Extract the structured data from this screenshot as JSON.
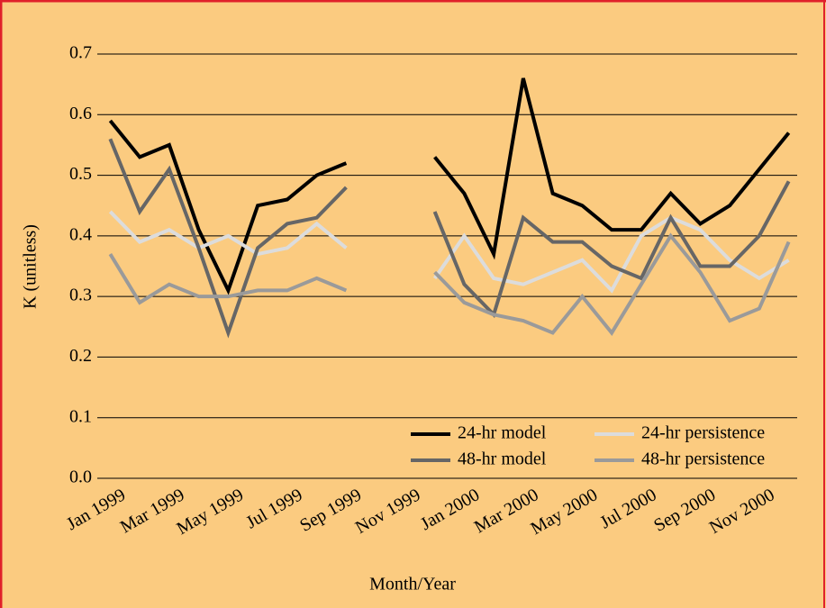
{
  "chart_data": {
    "type": "line",
    "x_label": "Month/Year",
    "y_label": "K (unitless)",
    "categories": [
      "Jan 1999",
      null,
      "Mar 1999",
      null,
      "May 1999",
      null,
      "Jul 1999",
      null,
      "Sep 1999",
      null,
      "Nov 1999",
      null,
      "Jan 2000",
      null,
      "Mar 2000",
      null,
      "May 2000",
      null,
      "Jul 2000",
      null,
      "Sep 2000",
      null,
      "Nov 2000",
      null
    ],
    "series": [
      {
        "name": "24-hr model",
        "color": "#000000",
        "values": [
          0.59,
          0.53,
          0.55,
          0.41,
          0.31,
          0.45,
          0.46,
          0.5,
          0.52,
          null,
          null,
          0.53,
          0.47,
          0.37,
          0.66,
          0.47,
          0.45,
          0.41,
          0.41,
          0.47,
          0.42,
          0.45,
          0.51,
          0.57
        ]
      },
      {
        "name": "24-hr persistence",
        "color": "#dcdcdc",
        "values": [
          0.44,
          0.39,
          0.41,
          0.38,
          0.4,
          0.37,
          0.38,
          0.42,
          0.38,
          null,
          null,
          0.33,
          0.4,
          0.33,
          0.32,
          0.34,
          0.36,
          0.31,
          0.4,
          0.43,
          0.41,
          0.36,
          0.33,
          0.36
        ]
      },
      {
        "name": "48-hr model",
        "color": "#666666",
        "values": [
          0.56,
          0.44,
          0.51,
          0.38,
          0.24,
          0.38,
          0.42,
          0.43,
          0.48,
          null,
          null,
          0.44,
          0.32,
          0.27,
          0.43,
          0.39,
          0.39,
          0.35,
          0.33,
          0.43,
          0.35,
          0.35,
          0.4,
          0.49
        ]
      },
      {
        "name": "48-hr persistence",
        "color": "#9a9a9a",
        "values": [
          0.37,
          0.29,
          0.32,
          0.3,
          0.3,
          0.31,
          0.31,
          0.33,
          0.31,
          null,
          null,
          0.34,
          0.29,
          0.27,
          0.26,
          0.24,
          0.3,
          0.24,
          0.32,
          0.4,
          0.34,
          0.26,
          0.28,
          0.39
        ]
      }
    ],
    "ylim": [
      0,
      0.7
    ],
    "yticks": [
      {
        "value": 0,
        "label": "0.0"
      },
      0.1,
      0.2,
      0.3,
      0.4,
      0.5,
      0.6,
      0.7
    ],
    "grid": true,
    "legend": "lower right"
  }
}
